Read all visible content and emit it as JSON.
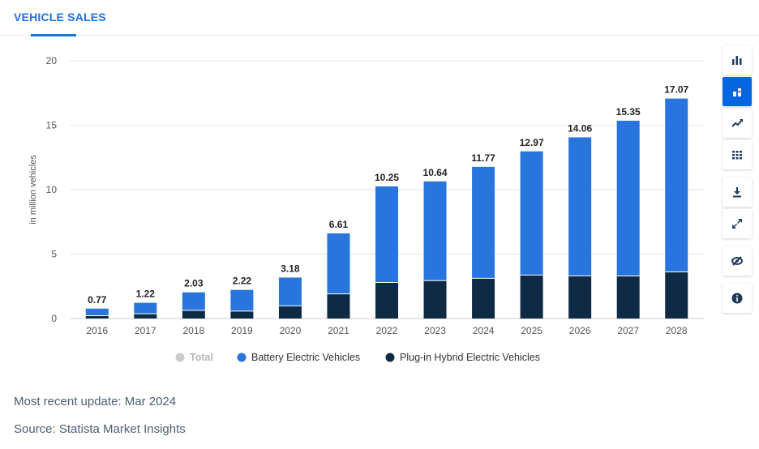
{
  "header": {
    "tab_title": "VEHICLE SALES"
  },
  "toolbar": {
    "items": [
      {
        "icon": "bar-chart-icon",
        "active": false
      },
      {
        "icon": "stacked-chart-icon",
        "active": true
      },
      {
        "icon": "trend-line-icon",
        "active": false
      },
      {
        "icon": "table-view-icon",
        "active": false
      },
      {
        "icon": "download-icon",
        "active": false
      },
      {
        "icon": "fullscreen-icon",
        "active": false
      },
      {
        "icon": "hide-icon",
        "active": false
      },
      {
        "icon": "info-icon",
        "active": false
      }
    ]
  },
  "chart_data": {
    "type": "bar",
    "stacked": true,
    "ylabel": "in million vehicles",
    "ylim": [
      0,
      20
    ],
    "yticks": [
      0,
      5,
      10,
      15,
      20
    ],
    "grid": true,
    "legend_position": "bottom",
    "categories": [
      "2016",
      "2017",
      "2018",
      "2019",
      "2020",
      "2021",
      "2022",
      "2023",
      "2024",
      "2025",
      "2026",
      "2027",
      "2028"
    ],
    "totals": [
      0.77,
      1.22,
      2.03,
      2.22,
      3.18,
      6.61,
      10.25,
      10.64,
      11.77,
      12.97,
      14.06,
      15.35,
      17.07
    ],
    "series": [
      {
        "name": "Total",
        "color": "#cccccc",
        "disabled": true
      },
      {
        "name": "Battery Electric Vehicles",
        "color": "#2876dd",
        "values": [
          0.55,
          0.85,
          1.4,
          1.65,
          2.2,
          4.7,
          7.45,
          7.7,
          8.65,
          9.6,
          10.75,
          12.05,
          13.45
        ]
      },
      {
        "name": "Plug-in Hybrid Electric Vehicles",
        "color": "#0f2a44",
        "values": [
          0.22,
          0.37,
          0.63,
          0.57,
          0.98,
          1.91,
          2.8,
          2.94,
          3.12,
          3.37,
          3.31,
          3.3,
          3.62
        ]
      }
    ]
  },
  "footer": {
    "update": "Most recent update: Mar 2024",
    "source": "Source: Statista Market Insights"
  }
}
